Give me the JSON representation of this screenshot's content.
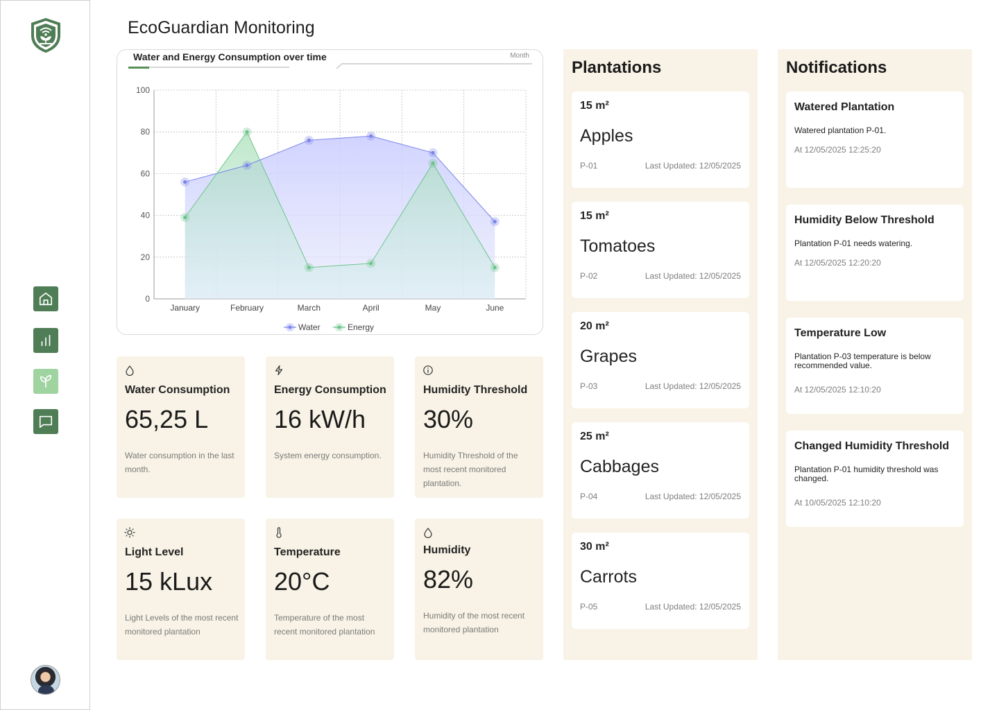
{
  "app": {
    "title": "EcoGuardian Monitoring"
  },
  "sidebar": {
    "items": [
      {
        "name": "home",
        "icon": "home-icon"
      },
      {
        "name": "charts",
        "icon": "bar-chart-icon"
      },
      {
        "name": "plantations",
        "icon": "sprout-icon",
        "active": true
      },
      {
        "name": "messages",
        "icon": "message-icon"
      }
    ],
    "logo_icon": "shield-plant-wifi-icon",
    "avatar_icon": "user-avatar"
  },
  "chart_panel": {
    "title": "Water and Energy Consumption over time",
    "period": "Month",
    "colors": {
      "water": "#7b84e8",
      "energy": "#6cc48a"
    }
  },
  "chart_data": {
    "type": "area",
    "title": "Water and Energy Consumption over time",
    "categories": [
      "January",
      "February",
      "March",
      "April",
      "May",
      "June"
    ],
    "series": [
      {
        "name": "Water",
        "values": [
          56,
          64,
          76,
          78,
          70,
          37
        ]
      },
      {
        "name": "Energy",
        "values": [
          39,
          80,
          15,
          17,
          65,
          15
        ]
      }
    ],
    "yticks": [
      "0",
      "20",
      "40",
      "60",
      "80",
      "100"
    ],
    "ylim": [
      0,
      100
    ],
    "grid": true,
    "legend": "bottom"
  },
  "stats": [
    {
      "label": "Water Consumption",
      "value": "65,25 L",
      "desc": "Water consumption in the last month.",
      "icon": "droplet-icon"
    },
    {
      "label": "Energy Consumption",
      "value": "16 kW/h",
      "desc": "System energy consumption.",
      "icon": "lightning-icon"
    },
    {
      "label": "Humidity Threshold",
      "value": "30%",
      "desc": "Humidity Threshold of the most recent monitored plantation.",
      "icon": "info-icon"
    },
    {
      "label": "Light Level",
      "value": "15 kLux",
      "desc": "Light Levels of the most recent monitored plantation",
      "icon": "sun-icon"
    },
    {
      "label": "Temperature",
      "value": "20°C",
      "desc": "Temperature of the most recent monitored plantation",
      "icon": "thermometer-icon"
    },
    {
      "label": "Humidity",
      "value": "82%",
      "desc": "Humidity of the most recent monitored plantation",
      "icon": "droplet-icon"
    }
  ],
  "plantations": {
    "title": "Plantations",
    "items": [
      {
        "area": "15 m²",
        "name": "Apples",
        "code": "P-01",
        "updated": "Last Updated: 12/05/2025"
      },
      {
        "area": "15 m²",
        "name": "Tomatoes",
        "code": "P-02",
        "updated": "Last Updated: 12/05/2025"
      },
      {
        "area": "20 m²",
        "name": "Grapes",
        "code": "P-03",
        "updated": "Last Updated: 12/05/2025"
      },
      {
        "area": "25 m²",
        "name": "Cabbages",
        "code": "P-04",
        "updated": "Last Updated: 12/05/2025"
      },
      {
        "area": "30 m²",
        "name": "Carrots",
        "code": "P-05",
        "updated": "Last Updated: 12/05/2025"
      }
    ]
  },
  "notifications": {
    "title": "Notifications",
    "items": [
      {
        "title": "Watered Plantation",
        "body": "Watered plantation P-01.",
        "time": "At 12/05/2025 12:25:20"
      },
      {
        "title": "Humidity Below Threshold",
        "body": "Plantation P-01 needs watering.",
        "time": "At 12/05/2025 12:20:20"
      },
      {
        "title": "Temperature Low",
        "body": "Plantation P-03 temperature is below recommended value.",
        "time": "At 12/05/2025 12:10:20"
      },
      {
        "title": "Changed Humidity Threshold",
        "body": "Plantation P-01 humidity threshold was changed.",
        "time": "At 10/05/2025 12:10:20"
      }
    ]
  }
}
